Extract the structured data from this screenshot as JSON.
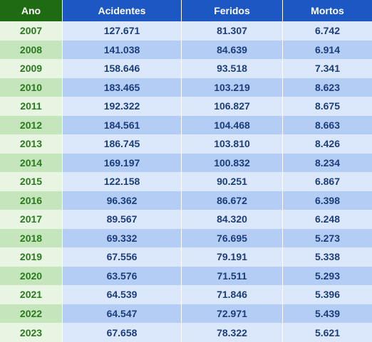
{
  "headers": {
    "ano": "Ano",
    "acidentes": "Acidentes",
    "feridos": "Feridos",
    "mortos": "Mortos"
  },
  "rows": [
    {
      "ano": "2007",
      "acidentes": "127.671",
      "feridos": "81.307",
      "mortos": "6.742"
    },
    {
      "ano": "2008",
      "acidentes": "141.038",
      "feridos": "84.639",
      "mortos": "6.914"
    },
    {
      "ano": "2009",
      "acidentes": "158.646",
      "feridos": "93.518",
      "mortos": "7.341"
    },
    {
      "ano": "2010",
      "acidentes": "183.465",
      "feridos": "103.219",
      "mortos": "8.623"
    },
    {
      "ano": "2011",
      "acidentes": "192.322",
      "feridos": "106.827",
      "mortos": "8.675"
    },
    {
      "ano": "2012",
      "acidentes": "184.561",
      "feridos": "104.468",
      "mortos": "8.663"
    },
    {
      "ano": "2013",
      "acidentes": "186.745",
      "feridos": "103.810",
      "mortos": "8.426"
    },
    {
      "ano": "2014",
      "acidentes": "169.197",
      "feridos": "100.832",
      "mortos": "8.234"
    },
    {
      "ano": "2015",
      "acidentes": "122.158",
      "feridos": "90.251",
      "mortos": "6.867"
    },
    {
      "ano": "2016",
      "acidentes": "96.362",
      "feridos": "86.672",
      "mortos": "6.398"
    },
    {
      "ano": "2017",
      "acidentes": "89.567",
      "feridos": "84.320",
      "mortos": "6.248"
    },
    {
      "ano": "2018",
      "acidentes": "69.332",
      "feridos": "76.695",
      "mortos": "5.273"
    },
    {
      "ano": "2019",
      "acidentes": "67.556",
      "feridos": "79.191",
      "mortos": "5.338"
    },
    {
      "ano": "2020",
      "acidentes": "63.576",
      "feridos": "71.511",
      "mortos": "5.293"
    },
    {
      "ano": "2021",
      "acidentes": "64.539",
      "feridos": "71.846",
      "mortos": "5.396"
    },
    {
      "ano": "2022",
      "acidentes": "64.547",
      "feridos": "72.971",
      "mortos": "5.439"
    },
    {
      "ano": "2023",
      "acidentes": "67.658",
      "feridos": "78.322",
      "mortos": "5.621"
    }
  ],
  "colors": {
    "header_ano": "#1e6b12",
    "header_values": "#1d57c4",
    "year_text": "#2a7a1d",
    "value_text": "#1d3d7a"
  }
}
